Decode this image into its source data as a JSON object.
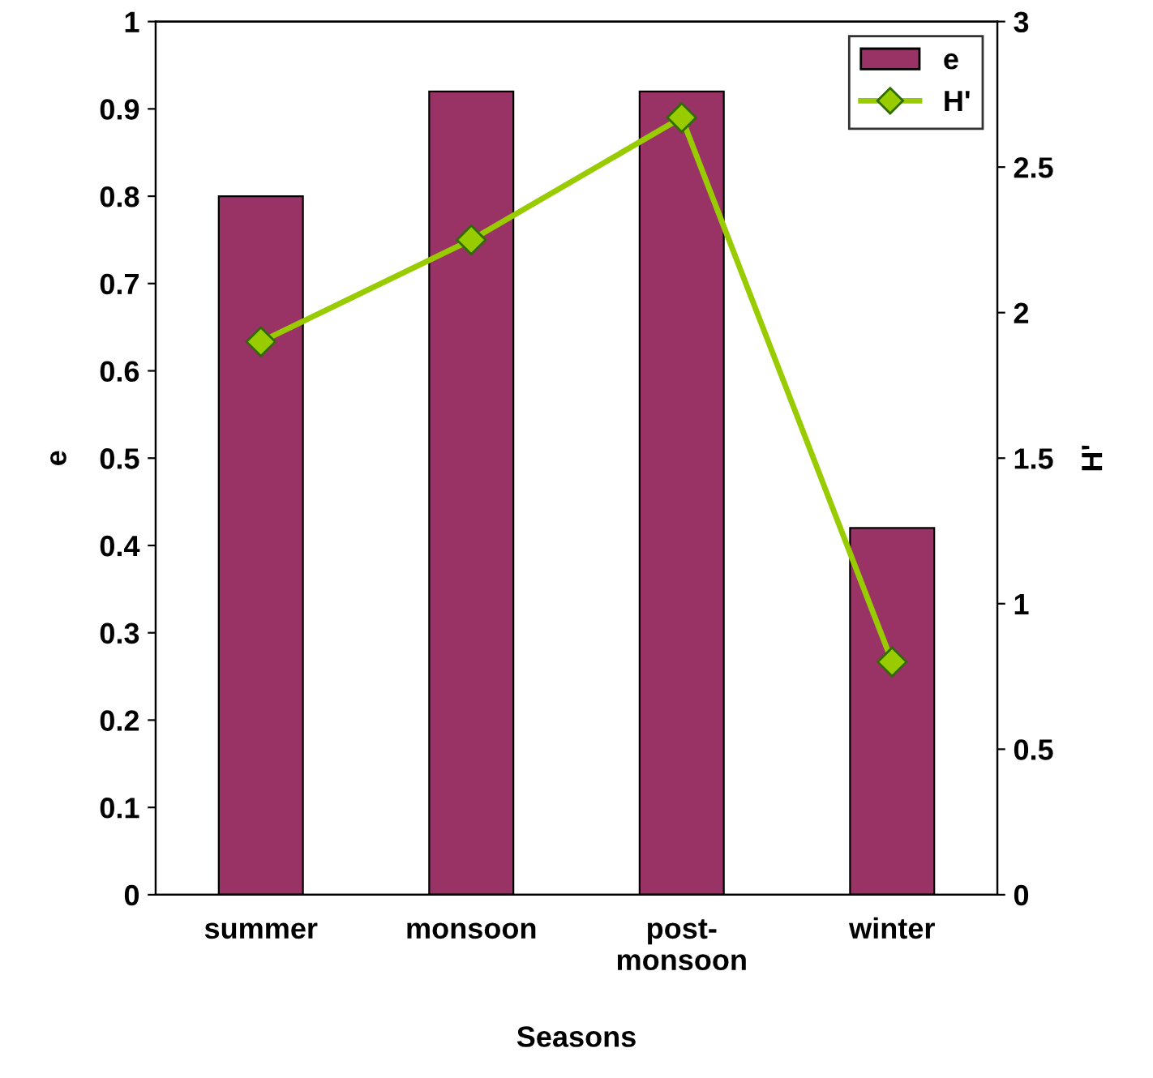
{
  "chart_data": {
    "type": "bar",
    "xlabel": "Seasons",
    "ylabel": "e",
    "y2label": "H'",
    "categories": [
      "summer",
      "monsoon",
      "post-\nmonsoon",
      "winter"
    ],
    "series": [
      {
        "name": "e",
        "color": "#993366",
        "values": [
          0.8,
          0.92,
          0.92,
          0.42
        ]
      },
      {
        "name": "H'",
        "type": "line",
        "axis": "y2",
        "color": "#99cc00",
        "values": [
          1.9,
          2.25,
          2.67,
          0.8
        ]
      }
    ],
    "ylim": [
      0,
      1
    ],
    "yticks": [
      0,
      0.1,
      0.2,
      0.3,
      0.4,
      0.5,
      0.6,
      0.7,
      0.8,
      0.9,
      1
    ],
    "y2lim": [
      0,
      3
    ],
    "y2ticks": [
      0,
      0.5,
      1,
      1.5,
      2,
      2.5,
      3
    ],
    "legend": "top right",
    "grid": false,
    "marker": "diamond",
    "line_style": "solid"
  }
}
